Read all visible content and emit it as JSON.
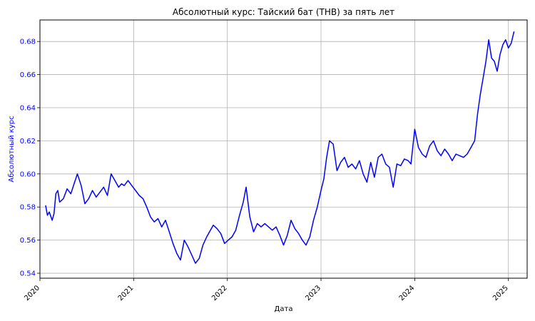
{
  "chart_data": {
    "type": "line",
    "title": "Абсолютный курс: Тайский бат (THB) за пять лет",
    "xlabel": "Дата",
    "ylabel": "Абсолютный курс",
    "grid": true,
    "legend": "none",
    "colors": {
      "line": "#0000ff",
      "ylabel": "#0000ff",
      "ytick": "#0000ff",
      "grid": "#b0b0b0",
      "axes": "#000000"
    },
    "xlim": [
      2020.0,
      2025.2
    ],
    "ylim": [
      0.537,
      0.693
    ],
    "x_ticks": [
      {
        "value": 2020,
        "label": "2020"
      },
      {
        "value": 2021,
        "label": "2021"
      },
      {
        "value": 2022,
        "label": "2022"
      },
      {
        "value": 2023,
        "label": "2023"
      },
      {
        "value": 2024,
        "label": "2024"
      },
      {
        "value": 2025,
        "label": "2025"
      }
    ],
    "y_ticks": [
      {
        "value": 0.54,
        "label": "0.54"
      },
      {
        "value": 0.56,
        "label": "0.56"
      },
      {
        "value": 0.58,
        "label": "0.58"
      },
      {
        "value": 0.6,
        "label": "0.60"
      },
      {
        "value": 0.62,
        "label": "0.62"
      },
      {
        "value": 0.64,
        "label": "0.64"
      },
      {
        "value": 0.66,
        "label": "0.66"
      },
      {
        "value": 0.68,
        "label": "0.68"
      }
    ],
    "series": [
      {
        "name": "THB",
        "x": [
          2020.06,
          2020.08,
          2020.1,
          2020.13,
          2020.15,
          2020.17,
          2020.19,
          2020.21,
          2020.25,
          2020.29,
          2020.33,
          2020.37,
          2020.4,
          2020.44,
          2020.48,
          2020.52,
          2020.56,
          2020.6,
          2020.64,
          2020.68,
          2020.72,
          2020.76,
          2020.8,
          2020.84,
          2020.87,
          2020.9,
          2020.94,
          2020.98,
          2021.02,
          2021.06,
          2021.1,
          2021.14,
          2021.18,
          2021.22,
          2021.26,
          2021.3,
          2021.34,
          2021.38,
          2021.42,
          2021.46,
          2021.5,
          2021.54,
          2021.58,
          2021.62,
          2021.66,
          2021.7,
          2021.74,
          2021.78,
          2021.81,
          2021.85,
          2021.89,
          2021.93,
          2021.97,
          2022.01,
          2022.05,
          2022.09,
          2022.13,
          2022.17,
          2022.2,
          2022.24,
          2022.28,
          2022.32,
          2022.36,
          2022.4,
          2022.44,
          2022.48,
          2022.52,
          2022.56,
          2022.6,
          2022.64,
          2022.68,
          2022.72,
          2022.76,
          2022.8,
          2022.84,
          2022.88,
          2022.92,
          2022.96,
          2023.0,
          2023.03,
          2023.06,
          2023.09,
          2023.13,
          2023.17,
          2023.21,
          2023.25,
          2023.29,
          2023.33,
          2023.37,
          2023.41,
          2023.45,
          2023.49,
          2023.53,
          2023.57,
          2023.61,
          2023.65,
          2023.69,
          2023.73,
          2023.77,
          2023.81,
          2023.85,
          2023.89,
          2023.93,
          2023.96,
          2024.0,
          2024.04,
          2024.08,
          2024.12,
          2024.16,
          2024.2,
          2024.24,
          2024.28,
          2024.32,
          2024.36,
          2024.4,
          2024.44,
          2024.48,
          2024.52,
          2024.56,
          2024.6,
          2024.64,
          2024.67,
          2024.7,
          2024.73,
          2024.76,
          2024.79,
          2024.82,
          2024.85,
          2024.88,
          2024.91,
          2024.94,
          2024.97,
          2025.0,
          2025.03,
          2025.06
        ],
        "values": [
          0.581,
          0.575,
          0.577,
          0.572,
          0.576,
          0.588,
          0.59,
          0.583,
          0.585,
          0.591,
          0.588,
          0.595,
          0.6,
          0.593,
          0.582,
          0.585,
          0.59,
          0.586,
          0.589,
          0.592,
          0.587,
          0.6,
          0.596,
          0.592,
          0.594,
          0.593,
          0.596,
          0.593,
          0.59,
          0.587,
          0.585,
          0.58,
          0.574,
          0.571,
          0.573,
          0.568,
          0.572,
          0.565,
          0.558,
          0.552,
          0.548,
          0.56,
          0.556,
          0.551,
          0.546,
          0.549,
          0.557,
          0.562,
          0.565,
          0.569,
          0.567,
          0.564,
          0.558,
          0.56,
          0.562,
          0.566,
          0.575,
          0.583,
          0.592,
          0.574,
          0.565,
          0.57,
          0.568,
          0.57,
          0.568,
          0.566,
          0.568,
          0.563,
          0.557,
          0.563,
          0.572,
          0.567,
          0.564,
          0.56,
          0.557,
          0.562,
          0.572,
          0.58,
          0.59,
          0.597,
          0.61,
          0.62,
          0.618,
          0.602,
          0.607,
          0.61,
          0.604,
          0.606,
          0.603,
          0.608,
          0.6,
          0.595,
          0.607,
          0.598,
          0.61,
          0.612,
          0.606,
          0.604,
          0.592,
          0.606,
          0.605,
          0.609,
          0.608,
          0.606,
          0.627,
          0.616,
          0.612,
          0.61,
          0.617,
          0.62,
          0.614,
          0.611,
          0.615,
          0.612,
          0.608,
          0.612,
          0.611,
          0.61,
          0.612,
          0.616,
          0.62,
          0.636,
          0.648,
          0.658,
          0.668,
          0.681,
          0.67,
          0.668,
          0.662,
          0.672,
          0.678,
          0.681,
          0.676,
          0.679,
          0.686
        ]
      }
    ]
  }
}
